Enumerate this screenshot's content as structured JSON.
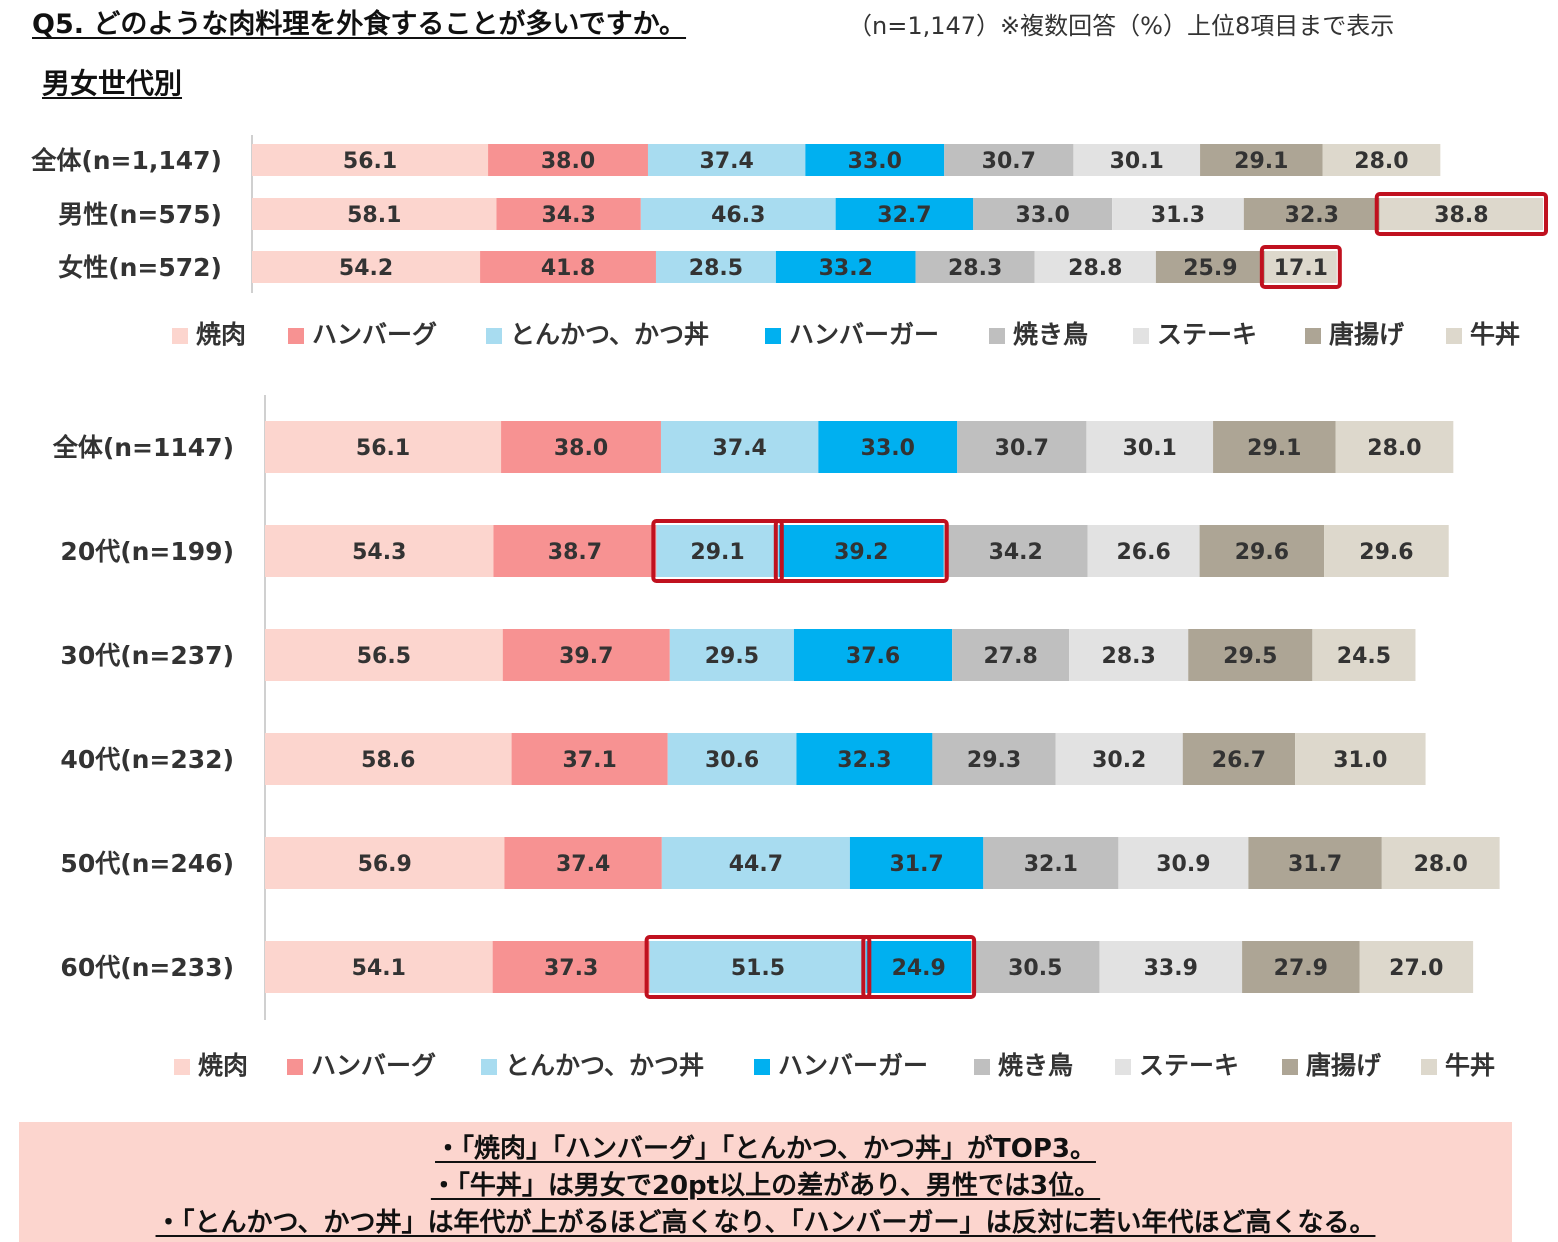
{
  "header": {
    "title": "Q5. どのような肉料理を外食することが多いですか。",
    "note": "（n=1,147）※複数回答（%）上位8項目まで表示",
    "subtitle": "男女世代別"
  },
  "colors": {
    "焼肉": "#fcd5ce",
    "ハンバーグ": "#f79292",
    "とんかつ、かつ丼": "#a8dcf0",
    "ハンバーガー": "#00b0f0",
    "焼き鳥": "#bfbfbf",
    "ステーキ": "#e2e2e2",
    "唐揚げ": "#ada595",
    "牛丼": "#ddd8cc",
    "highlight": "#c0111f"
  },
  "chart_data": [
    {
      "type": "bar",
      "stacked": true,
      "orientation": "horizontal",
      "title": "",
      "categories": [
        "全体(n=1,147)",
        "男性(n=575)",
        "女性(n=572)"
      ],
      "series": [
        {
          "name": "焼肉",
          "values": [
            56.1,
            58.1,
            54.2
          ]
        },
        {
          "name": "ハンバーグ",
          "values": [
            38.0,
            34.3,
            41.8
          ]
        },
        {
          "name": "とんかつ、かつ丼",
          "values": [
            37.4,
            46.3,
            28.5
          ]
        },
        {
          "name": "ハンバーガー",
          "values": [
            33.0,
            32.7,
            33.2
          ]
        },
        {
          "name": "焼き鳥",
          "values": [
            30.7,
            33.0,
            28.3
          ]
        },
        {
          "name": "ステーキ",
          "values": [
            30.1,
            31.3,
            28.8
          ]
        },
        {
          "name": "唐揚げ",
          "values": [
            29.1,
            32.3,
            25.9
          ]
        },
        {
          "name": "牛丼",
          "values": [
            28.0,
            38.8,
            17.1
          ]
        }
      ],
      "highlights": [
        {
          "category": "男性(n=575)",
          "series": [
            "牛丼"
          ]
        },
        {
          "category": "女性(n=572)",
          "series": [
            "牛丼"
          ]
        }
      ],
      "legend": "bottom",
      "grid": false
    },
    {
      "type": "bar",
      "stacked": true,
      "orientation": "horizontal",
      "title": "",
      "categories": [
        "全体(n=1147)",
        "20代(n=199)",
        "30代(n=237)",
        "40代(n=232)",
        "50代(n=246)",
        "60代(n=233)"
      ],
      "series": [
        {
          "name": "焼肉",
          "values": [
            56.1,
            54.3,
            56.5,
            58.6,
            56.9,
            54.1
          ]
        },
        {
          "name": "ハンバーグ",
          "values": [
            38.0,
            38.7,
            39.7,
            37.1,
            37.4,
            37.3
          ]
        },
        {
          "name": "とんかつ、かつ丼",
          "values": [
            37.4,
            29.1,
            29.5,
            30.6,
            44.7,
            51.5
          ]
        },
        {
          "name": "ハンバーガー",
          "values": [
            33.0,
            39.2,
            37.6,
            32.3,
            31.7,
            24.9
          ]
        },
        {
          "name": "焼き鳥",
          "values": [
            30.7,
            34.2,
            27.8,
            29.3,
            32.1,
            30.5
          ]
        },
        {
          "name": "ステーキ",
          "values": [
            30.1,
            26.6,
            28.3,
            30.2,
            30.9,
            33.9
          ]
        },
        {
          "name": "唐揚げ",
          "values": [
            29.1,
            29.6,
            29.5,
            26.7,
            31.7,
            27.9
          ]
        },
        {
          "name": "牛丼",
          "values": [
            28.0,
            29.6,
            24.5,
            31.0,
            28.0,
            27.0
          ]
        }
      ],
      "highlights": [
        {
          "category": "20代(n=199)",
          "series": [
            "とんかつ、かつ丼"
          ]
        },
        {
          "category": "20代(n=199)",
          "series": [
            "ハンバーガー"
          ]
        },
        {
          "category": "60代(n=233)",
          "series": [
            "とんかつ、かつ丼"
          ]
        },
        {
          "category": "60代(n=233)",
          "series": [
            "ハンバーガー"
          ]
        }
      ],
      "legend": "bottom",
      "grid": false
    }
  ],
  "summary": {
    "lines": [
      "・「焼肉」「ハンバーグ」「とんかつ、かつ丼」がTOP3。",
      "・「牛丼」は男女で20pt以上の差があり、男性では3位。",
      "・「とんかつ、かつ丼」は年代が上がるほど高くなり、「ハンバーガー」は反対に若い年代ほど高くなる。"
    ]
  }
}
